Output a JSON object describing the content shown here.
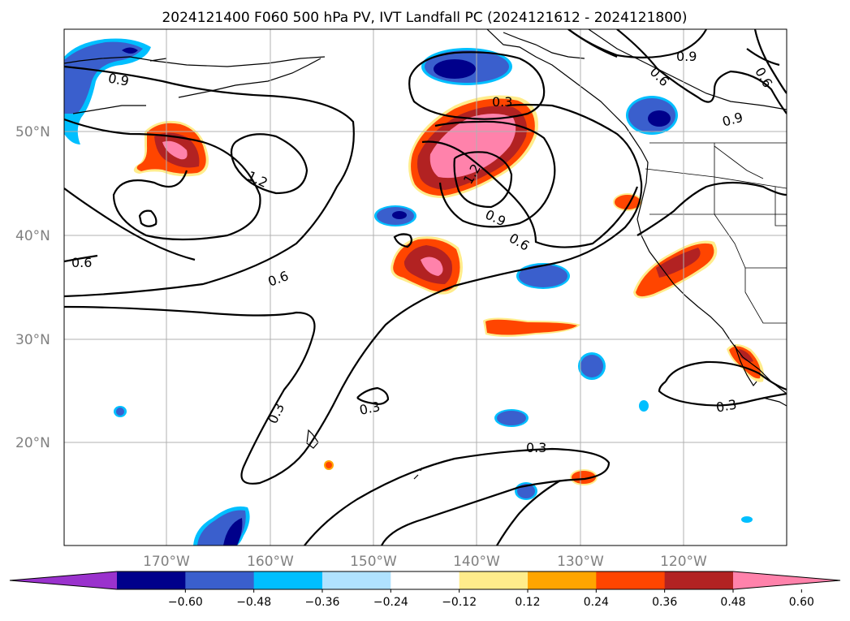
{
  "title": "2024121400 F060 500 hPa PV, IVT Landfall PC (2024121612 - 2024121800)",
  "lat_labels": [
    "50°N",
    "40°N",
    "30°N",
    "20°N"
  ],
  "lon_labels": [
    "170°W",
    "160°W",
    "150°W",
    "140°W",
    "130°W",
    "120°W"
  ],
  "contour_labels": [
    "0.9",
    "0.9",
    "0.6",
    "0.9",
    "0.6",
    "1.2",
    "0.3",
    "1.2",
    "0.9",
    "0.6",
    "0.6",
    "0.6",
    "0.3",
    "0.3",
    "0.3",
    "0.3"
  ],
  "colorbar": {
    "ticks": [
      "−0.60",
      "−0.48",
      "−0.36",
      "−0.24",
      "−0.12",
      "0.12",
      "0.24",
      "0.36",
      "0.48",
      "0.60"
    ],
    "colors": [
      "#9a32cd",
      "#00008b",
      "#3a5fcd",
      "#00bfff",
      "#b0e2ff",
      "#ffffff",
      "#ffec8b",
      "#ffa500",
      "#ff4500",
      "#b22222",
      "#ff82ab"
    ]
  },
  "shading_colors": {
    "neg_light": "#b0e2ff",
    "neg_cyan": "#00bfff",
    "neg_blue": "#3a5fcd",
    "neg_navy": "#00008b",
    "pos_yellow": "#ffec8b",
    "pos_orange": "#ffa500",
    "pos_redorange": "#ff4500",
    "pos_firebrick": "#b22222",
    "pos_pink": "#ff82ab"
  }
}
